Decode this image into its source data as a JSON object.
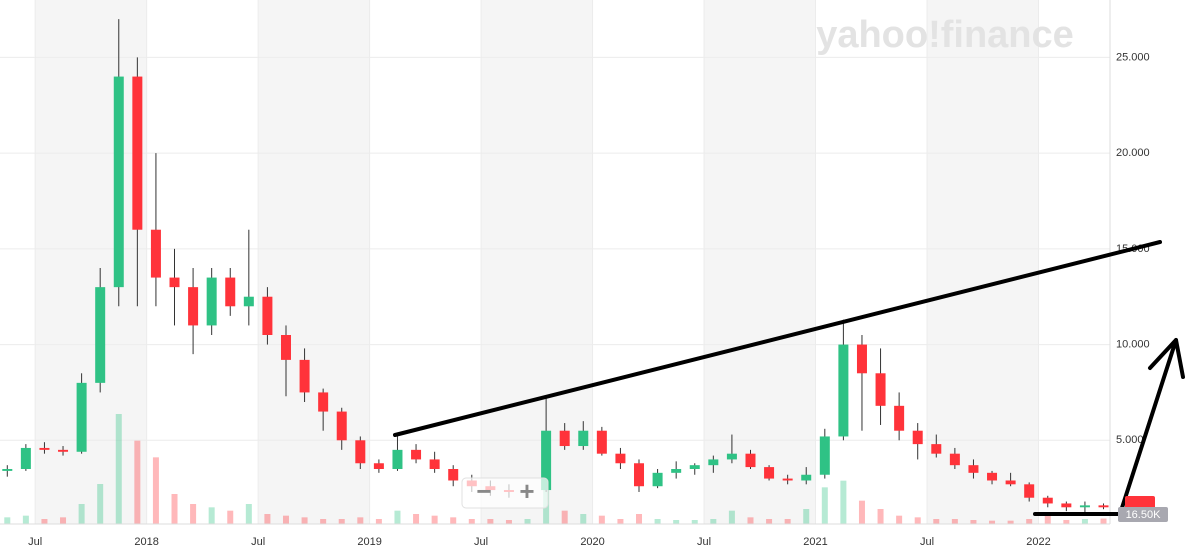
{
  "chart_data": {
    "type": "candlestick",
    "categories": [
      null,
      null,
      "Jul",
      null,
      null,
      null,
      null,
      null,
      "2018",
      null,
      null,
      null,
      null,
      null,
      "Jul",
      null,
      null,
      null,
      null,
      null,
      "2019",
      null,
      null,
      null,
      null,
      null,
      "Jul",
      null,
      null,
      null,
      null,
      null,
      "2020",
      null,
      null,
      null,
      null,
      null,
      "Jul",
      null,
      null,
      null,
      null,
      null,
      "2021",
      null,
      null,
      null,
      null,
      null,
      "Jul",
      null,
      null,
      null,
      null,
      null,
      "2022",
      null,
      null,
      null
    ],
    "open": [
      3400,
      3500,
      4600,
      4500,
      4400,
      8000,
      13000,
      24000,
      16000,
      13500,
      13000,
      11000,
      13500,
      12000,
      12500,
      10500,
      9200,
      7500,
      6500,
      5000,
      3800,
      3500,
      4500,
      4000,
      3500,
      2900,
      2600,
      2400,
      2300,
      2400,
      5500,
      4700,
      5500,
      4300,
      3800,
      2600,
      3300,
      3500,
      3700,
      4000,
      4300,
      3600,
      3000,
      2900,
      3200,
      5200,
      10000,
      8500,
      6800,
      5500,
      4800,
      4300,
      3700,
      3300,
      2900,
      2700,
      2000,
      1700,
      1500,
      1600
    ],
    "high": [
      3700,
      4800,
      4900,
      4700,
      8500,
      14000,
      27000,
      25000,
      20000,
      15000,
      14000,
      14000,
      14000,
      16000,
      13000,
      11000,
      9800,
      7700,
      6700,
      5200,
      4000,
      5300,
      4800,
      4400,
      3700,
      3200,
      2900,
      2700,
      2600,
      7200,
      5900,
      6000,
      5700,
      4600,
      4000,
      3500,
      3900,
      3800,
      4200,
      5300,
      4500,
      3700,
      3200,
      3600,
      5600,
      11300,
      10500,
      9800,
      7500,
      5900,
      5300,
      4600,
      4000,
      3400,
      3300,
      2800,
      2100,
      1800,
      1800,
      1700
    ],
    "low": [
      3100,
      3400,
      4300,
      4200,
      4300,
      7500,
      12000,
      12000,
      12000,
      11000,
      9500,
      10500,
      11500,
      11000,
      10000,
      7300,
      7000,
      5500,
      4500,
      3500,
      3300,
      3400,
      3800,
      3300,
      2600,
      2300,
      2100,
      2000,
      2000,
      2300,
      4500,
      4500,
      4200,
      3500,
      2300,
      2500,
      3000,
      3200,
      3300,
      3800,
      3500,
      2900,
      2700,
      2700,
      3000,
      5000,
      5500,
      5800,
      5000,
      4000,
      4100,
      3500,
      3000,
      2700,
      2600,
      1800,
      1500,
      1300,
      1100,
      1400
    ],
    "close": [
      3500,
      4600,
      4500,
      4400,
      8000,
      13000,
      24000,
      16000,
      13500,
      13000,
      11000,
      13500,
      12000,
      12500,
      10500,
      9200,
      7500,
      6500,
      5000,
      3800,
      3500,
      4500,
      4000,
      3500,
      2900,
      2600,
      2400,
      2300,
      2400,
      5500,
      4700,
      5500,
      4300,
      3800,
      2600,
      3300,
      3500,
      3700,
      4000,
      4300,
      3600,
      3000,
      2900,
      3200,
      5200,
      10000,
      8500,
      6800,
      5500,
      4800,
      4300,
      3700,
      3300,
      2900,
      2700,
      2000,
      1700,
      1500,
      1600,
      1500
    ],
    "volume": [
      20000,
      25000,
      15000,
      20000,
      60000,
      120000,
      330000,
      250000,
      200000,
      90000,
      60000,
      50000,
      40000,
      60000,
      30000,
      25000,
      20000,
      15000,
      15000,
      20000,
      15000,
      40000,
      30000,
      25000,
      20000,
      15000,
      15000,
      12000,
      15000,
      150000,
      40000,
      30000,
      25000,
      15000,
      30000,
      15000,
      12000,
      12000,
      15000,
      40000,
      20000,
      15000,
      15000,
      45000,
      110000,
      130000,
      70000,
      45000,
      25000,
      20000,
      15000,
      15000,
      12000,
      10000,
      10000,
      15000,
      30000,
      12000,
      15000,
      16500
    ],
    "volume_label": "16.50K",
    "up_color": "#2fc285",
    "down_color": "#ff333a",
    "ylim": [
      0,
      28000
    ],
    "yticks": [
      {
        "value": 5000,
        "label": "5.000"
      },
      {
        "value": 10000,
        "label": "10.000"
      },
      {
        "value": 15000,
        "label": "15.000"
      },
      {
        "value": 20000,
        "label": "20.000"
      },
      {
        "value": 25000,
        "label": "25.000"
      }
    ],
    "grid": true
  },
  "watermark": "yahoo!finance",
  "zoom": {
    "out": "−",
    "in": "+"
  }
}
